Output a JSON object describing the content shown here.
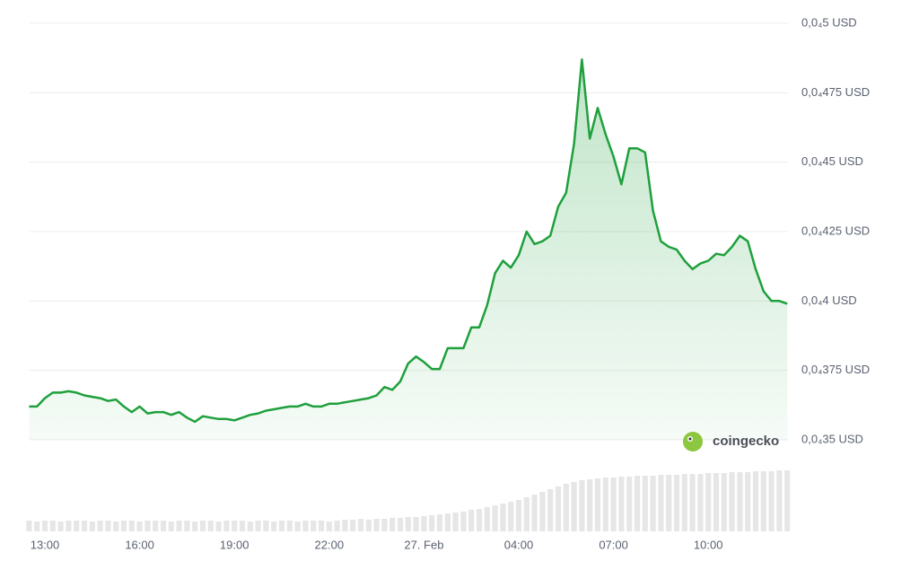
{
  "chart_data": {
    "type": "line",
    "x": [
      null,
      null,
      "13:00",
      null,
      null,
      null,
      null,
      null,
      null,
      null,
      null,
      null,
      null,
      null,
      "16:00",
      null,
      null,
      null,
      null,
      null,
      null,
      null,
      null,
      null,
      null,
      null,
      "19:00",
      null,
      null,
      null,
      null,
      null,
      null,
      null,
      null,
      null,
      null,
      null,
      "22:00",
      null,
      null,
      null,
      null,
      null,
      null,
      null,
      null,
      null,
      null,
      null,
      "27. Feb",
      null,
      null,
      null,
      null,
      null,
      null,
      null,
      null,
      null,
      null,
      null,
      "04:00",
      null,
      null,
      null,
      null,
      null,
      null,
      null,
      null,
      null,
      null,
      null,
      "07:00",
      null,
      null,
      null,
      null,
      null,
      null,
      null,
      null,
      null,
      null,
      null,
      "10:00",
      null,
      null,
      null,
      null,
      null,
      null,
      null,
      null,
      null,
      null
    ],
    "values": [
      3.62e-05,
      3.62e-05,
      3.65e-05,
      3.67e-05,
      3.67e-05,
      3.675e-05,
      3.67e-05,
      3.66e-05,
      3.655e-05,
      3.65e-05,
      3.64e-05,
      3.645e-05,
      3.62e-05,
      3.6e-05,
      3.62e-05,
      3.595e-05,
      3.6e-05,
      3.6e-05,
      3.59e-05,
      3.6e-05,
      3.58e-05,
      3.565e-05,
      3.585e-05,
      3.58e-05,
      3.575e-05,
      3.575e-05,
      3.57e-05,
      3.58e-05,
      3.59e-05,
      3.595e-05,
      3.605e-05,
      3.61e-05,
      3.615e-05,
      3.62e-05,
      3.62e-05,
      3.63e-05,
      3.62e-05,
      3.62e-05,
      3.63e-05,
      3.63e-05,
      3.635e-05,
      3.64e-05,
      3.645e-05,
      3.65e-05,
      3.66e-05,
      3.69e-05,
      3.68e-05,
      3.71e-05,
      3.775e-05,
      3.8e-05,
      3.78e-05,
      3.755e-05,
      3.755e-05,
      3.83e-05,
      3.83e-05,
      3.83e-05,
      3.905e-05,
      3.905e-05,
      3.985e-05,
      4.1e-05,
      4.145e-05,
      4.12e-05,
      4.165e-05,
      4.25e-05,
      4.205e-05,
      4.215e-05,
      4.235e-05,
      4.34e-05,
      4.39e-05,
      4.565e-05,
      4.87e-05,
      4.585e-05,
      4.695e-05,
      4.6e-05,
      4.52e-05,
      4.42e-05,
      4.55e-05,
      4.55e-05,
      4.535e-05,
      4.325e-05,
      4.215e-05,
      4.195e-05,
      4.185e-05,
      4.145e-05,
      4.115e-05,
      4.135e-05,
      4.145e-05,
      4.17e-05,
      4.165e-05,
      4.195e-05,
      4.235e-05,
      4.215e-05,
      4.115e-05,
      4.035e-05,
      4e-05,
      4e-05,
      3.99e-05
    ],
    "color": "#1ea03c",
    "ylim": [
      3.5e-05,
      5e-05
    ],
    "yticks": [
      {
        "value": 5e-05,
        "label": "0,0₄5 USD"
      },
      {
        "value": 4.75e-05,
        "label": "0,0₄475 USD"
      },
      {
        "value": 4.5e-05,
        "label": "0,0₄45 USD"
      },
      {
        "value": 4.25e-05,
        "label": "0,0₄425 USD"
      },
      {
        "value": 4e-05,
        "label": "0,0₄4 USD"
      },
      {
        "value": 3.75e-05,
        "label": "0,0₄375 USD"
      },
      {
        "value": 3.5e-05,
        "label": "0,0₄35 USD"
      }
    ],
    "grid": true,
    "volume": {
      "color": "#e6e6e6",
      "ylim": [
        0,
        100
      ],
      "values": [
        12,
        11,
        12,
        12,
        11,
        12,
        12,
        12,
        11,
        12,
        12,
        11,
        12,
        12,
        11,
        12,
        12,
        12,
        11,
        12,
        12,
        11,
        12,
        12,
        11,
        12,
        12,
        12,
        11,
        12,
        12,
        11,
        12,
        12,
        11,
        12,
        12,
        12,
        11,
        12,
        13,
        13,
        14,
        13,
        14,
        14,
        15,
        15,
        16,
        16,
        17,
        18,
        19,
        20,
        21,
        22,
        24,
        25,
        27,
        29,
        31,
        33,
        35,
        38,
        41,
        44,
        47,
        50,
        53,
        55,
        57,
        58,
        59,
        60,
        60,
        61,
        61,
        62,
        62,
        62,
        63,
        63,
        63,
        64,
        64,
        64,
        65,
        65,
        65,
        66,
        66,
        66,
        67,
        67,
        67,
        68,
        68
      ]
    },
    "watermark": "coingecko"
  }
}
